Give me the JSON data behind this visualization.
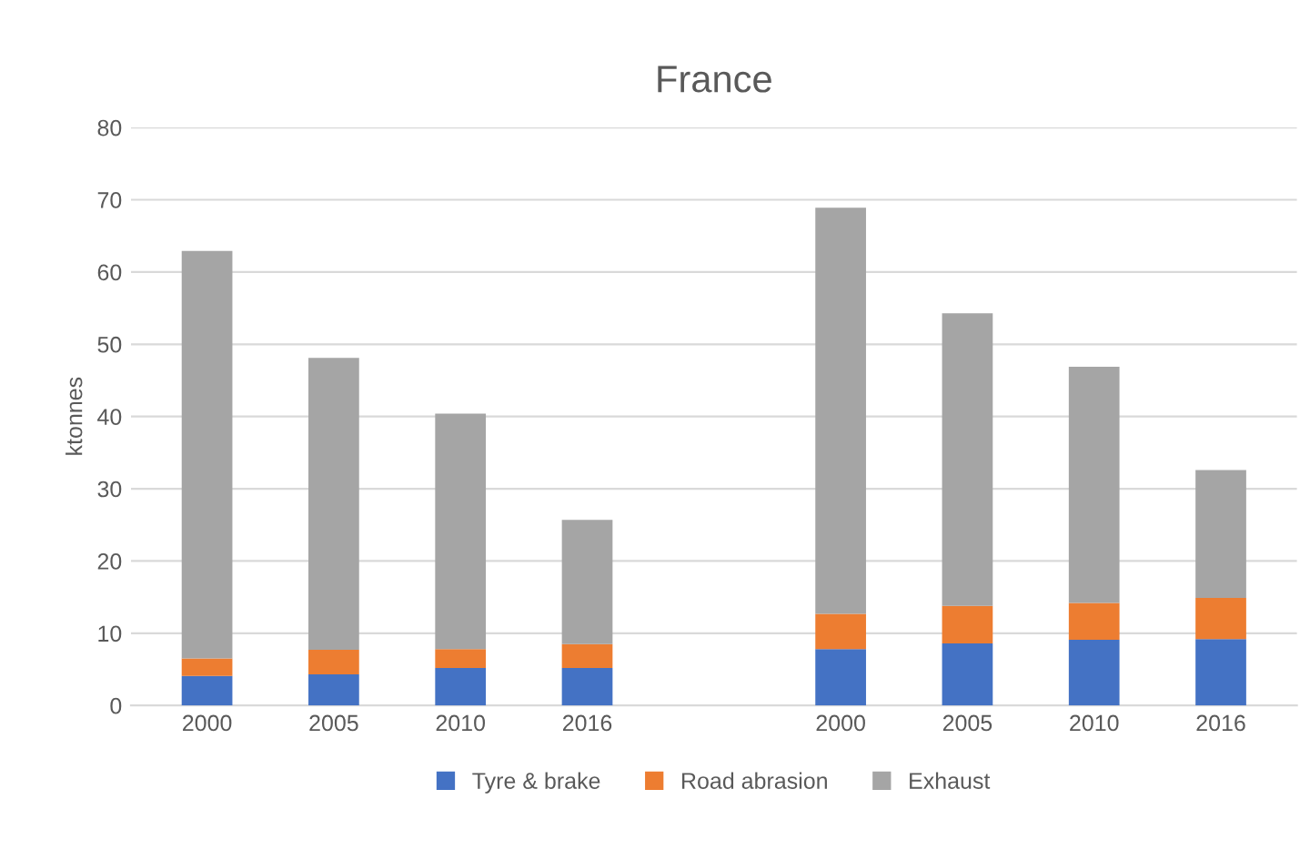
{
  "chart_data": {
    "type": "bar",
    "title": "France",
    "ylabel": "ktonnes",
    "stacked": true,
    "categories": [
      "2000",
      "2005",
      "2010",
      "2016",
      null,
      "2000",
      "2005",
      "2010",
      "2016"
    ],
    "series": [
      {
        "name": "Tyre & brake",
        "color": "#4472c4",
        "values": [
          4.1,
          4.3,
          5.2,
          5.2,
          null,
          7.8,
          8.6,
          9.1,
          9.2
        ]
      },
      {
        "name": "Road abrasion",
        "color": "#ed7d31",
        "values": [
          2.4,
          3.4,
          2.6,
          3.3,
          null,
          4.9,
          5.2,
          5.1,
          5.7
        ]
      },
      {
        "name": "Exhaust",
        "color": "#a5a5a5",
        "values": [
          56.4,
          40.4,
          32.6,
          17.2,
          null,
          56.2,
          40.5,
          32.7,
          17.7
        ]
      }
    ],
    "ylim": [
      0,
      80
    ],
    "yticks": [
      0,
      10,
      20,
      30,
      40,
      50,
      60,
      70,
      80
    ],
    "grid": "y",
    "legend": "bottom"
  }
}
